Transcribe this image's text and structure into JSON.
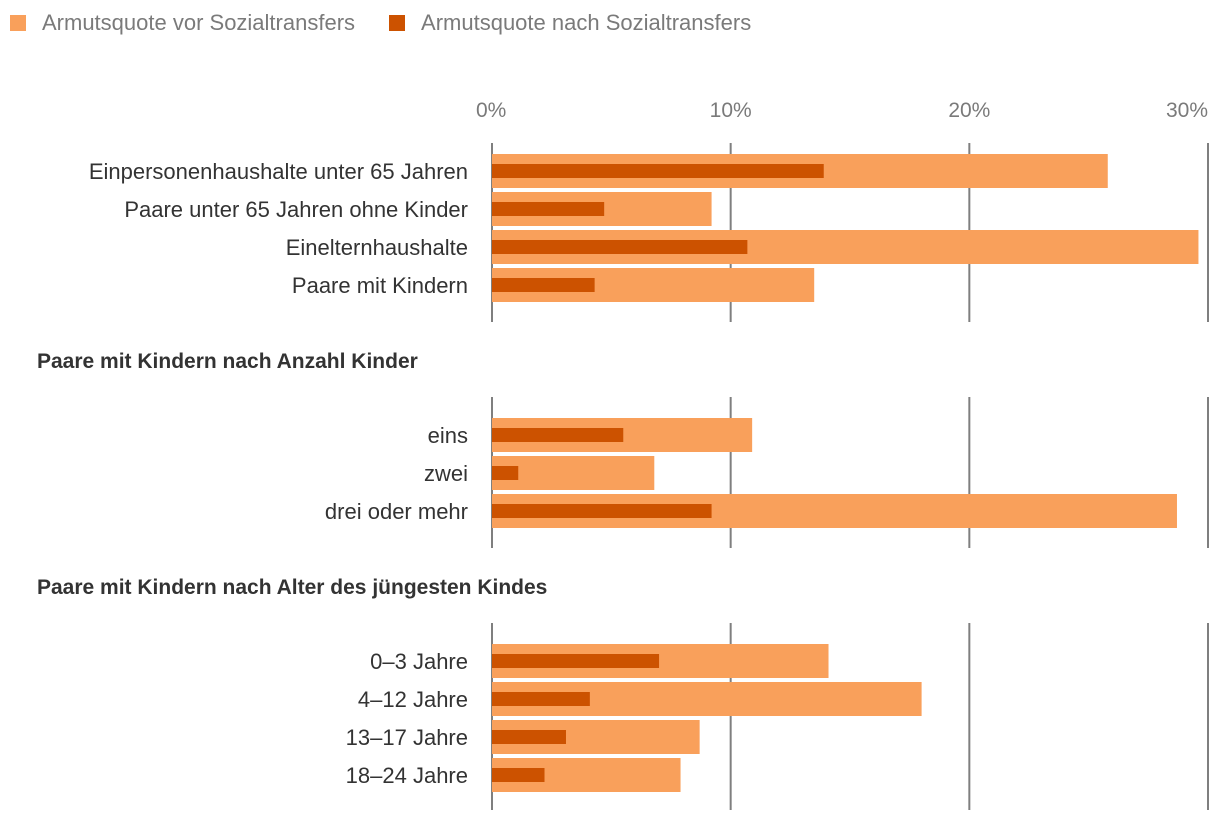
{
  "legend": {
    "before": "Armutsquote vor Sozialtransfers",
    "after": "Armutsquote nach Sozialtransfers"
  },
  "colors": {
    "before": "#f9a05b",
    "after": "#cc5200",
    "grid": "#7f7f7f",
    "text": "#333333",
    "muted": "#7a7a7a"
  },
  "chart_data": {
    "type": "bar",
    "orientation": "horizontal",
    "xlim": [
      0,
      30
    ],
    "x_ticks": [
      "0%",
      "10%",
      "20%",
      "30%"
    ],
    "series_names": [
      "Armutsquote vor Sozialtransfers",
      "Armutsquote nach Sozialtransfers"
    ],
    "groups": [
      {
        "title": "",
        "categories": [
          "Einpersonenhaushalte unter 65 Jahren",
          "Paare unter 65 Jahren ohne Kinder",
          "Einelternhaushalte",
          "Paare mit Kindern"
        ],
        "before": [
          25.8,
          9.2,
          29.6,
          13.5
        ],
        "after": [
          13.9,
          4.7,
          10.7,
          4.3
        ]
      },
      {
        "title": "Paare mit Kindern nach Anzahl Kinder",
        "categories": [
          "eins",
          "zwei",
          "drei oder mehr"
        ],
        "before": [
          10.9,
          6.8,
          28.7
        ],
        "after": [
          5.5,
          1.1,
          9.2
        ]
      },
      {
        "title": "Paare mit Kindern nach Alter des jüngesten Kindes",
        "categories": [
          "0–3 Jahre",
          "4–12 Jahre",
          "13–17 Jahre",
          "18–24 Jahre"
        ],
        "before": [
          14.1,
          18.0,
          8.7,
          7.9
        ],
        "after": [
          7.0,
          4.1,
          3.1,
          2.2
        ]
      }
    ]
  }
}
